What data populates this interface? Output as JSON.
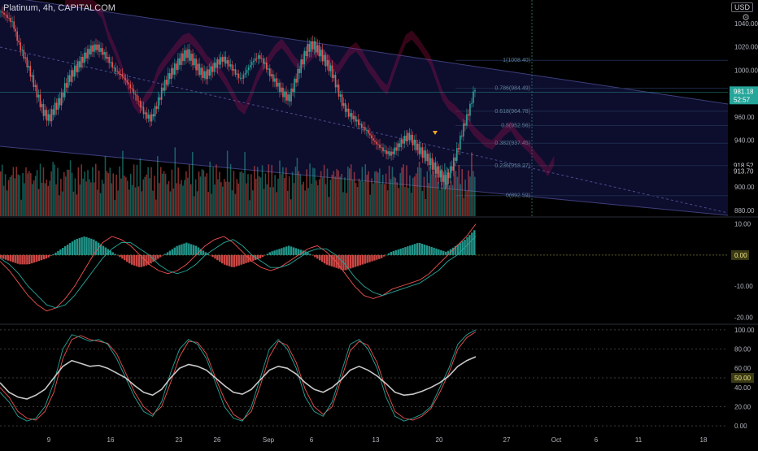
{
  "header": {
    "title": "Platinum, 4h, CAPITALCOM",
    "currency": "USD",
    "settings_icon": "gear-icon"
  },
  "chart_data": [
    {
      "type": "candlestick",
      "name": "Platinum, 4h, CAPITALCOM",
      "ylim": [
        875,
        1060
      ],
      "yticks": [
        880,
        900,
        920,
        940,
        960,
        980,
        1000,
        1020,
        1040
      ],
      "xticks": [
        "9",
        "16",
        "23",
        "26",
        "Sep",
        "6",
        "13",
        "20",
        "27",
        "Oct",
        "6",
        "11",
        "18"
      ],
      "path_close": [
        1050,
        1046,
        1040,
        1022,
        1010,
        996,
        980,
        965,
        958,
        968,
        975,
        990,
        998,
        1005,
        1012,
        1018,
        1020,
        1015,
        1008,
        1000,
        996,
        990,
        982,
        972,
        962,
        958,
        970,
        985,
        995,
        1002,
        1010,
        1015,
        1008,
        1000,
        995,
        1000,
        1006,
        1010,
        1005,
        998,
        992,
        1000,
        1008,
        1012,
        1005,
        995,
        988,
        980,
        975,
        990,
        1005,
        1018,
        1022,
        1016,
        1008,
        1000,
        985,
        970,
        962,
        958,
        952,
        948,
        940,
        935,
        930,
        928,
        934,
        940,
        944,
        936,
        930,
        925,
        918,
        912,
        905,
        915,
        930,
        950,
        965,
        985
      ],
      "current_price": {
        "label": "981.18",
        "countdown": "52:57",
        "value": 981.18
      },
      "price_tags": [
        {
          "label": "918.52",
          "value": 918.52
        },
        {
          "label": "913.70",
          "value": 913.7
        }
      ],
      "fib_levels": [
        {
          "label": "1(1008.40)",
          "value": 1008.4
        },
        {
          "label": "0.786(984.49)",
          "value": 984.49
        },
        {
          "label": "0.618(964.78)",
          "value": 964.78
        },
        {
          "label": "0.5(952.56)",
          "value": 952.56
        },
        {
          "label": "0.382(937.45)",
          "value": 937.45
        },
        {
          "label": "0.236(918.27)",
          "value": 918.27
        },
        {
          "label": "0(892.59)",
          "value": 892.59
        }
      ],
      "colors": {
        "up": "#26a69a",
        "down": "#ef5350",
        "channel_fill": "#0d0d2e",
        "cloud": "#d4145a"
      }
    },
    {
      "type": "histogram",
      "name": "macd",
      "ylim": [
        -22,
        12
      ],
      "yticks": [
        10,
        0,
        -10,
        -20
      ],
      "ytick_labels": [
        "10.00",
        "0.00",
        "-10.00",
        "-20.00"
      ],
      "zero_tag": "0.00",
      "hist": [
        -1,
        -2,
        -3,
        -3,
        -2,
        -1,
        1,
        3,
        5,
        6,
        5,
        3,
        1,
        -1,
        -3,
        -4,
        -3,
        -1,
        1,
        3,
        4,
        3,
        1,
        -1,
        -3,
        -4,
        -3,
        -2,
        -1,
        1,
        2,
        3,
        2,
        1,
        -1,
        -3,
        -4,
        -5,
        -4,
        -3,
        -2,
        -1,
        1,
        2,
        3,
        4,
        3,
        2,
        1,
        3,
        5,
        8
      ],
      "macd_line": [
        -2,
        -5,
        -9,
        -13,
        -16,
        -18,
        -17,
        -14,
        -10,
        -5,
        0,
        4,
        6,
        5,
        3,
        0,
        -3,
        -5,
        -6,
        -5,
        -3,
        0,
        3,
        5,
        6,
        4,
        1,
        -2,
        -4,
        -5,
        -4,
        -2,
        0,
        2,
        3,
        1,
        -2,
        -6,
        -10,
        -13,
        -14,
        -13,
        -11,
        -10,
        -9,
        -8,
        -6,
        -3,
        0,
        3,
        6,
        10
      ],
      "signal_line": [
        -1,
        -3,
        -6,
        -10,
        -13,
        -16,
        -17,
        -16,
        -13,
        -9,
        -5,
        -1,
        2,
        4,
        4,
        2,
        0,
        -3,
        -5,
        -6,
        -5,
        -3,
        0,
        2,
        4,
        5,
        3,
        0,
        -2,
        -4,
        -4,
        -3,
        -1,
        1,
        2,
        2,
        0,
        -3,
        -7,
        -10,
        -12,
        -13,
        -12,
        -11,
        -10,
        -9,
        -7,
        -5,
        -2,
        0,
        3,
        6
      ]
    },
    {
      "type": "line",
      "name": "stoch",
      "ylim": [
        -5,
        105
      ],
      "yticks": [
        100,
        80,
        60,
        40,
        20,
        0
      ],
      "ytick_labels": [
        "100.00",
        "80.00",
        "60.00",
        "40.00",
        "20.00",
        "0.00"
      ],
      "mid_tag": "50.00",
      "k": [
        35,
        25,
        10,
        5,
        8,
        20,
        45,
        80,
        95,
        92,
        88,
        90,
        85,
        70,
        50,
        30,
        15,
        10,
        25,
        55,
        80,
        90,
        85,
        70,
        45,
        20,
        8,
        5,
        20,
        50,
        80,
        90,
        80,
        60,
        30,
        15,
        10,
        25,
        55,
        85,
        90,
        80,
        60,
        30,
        10,
        5,
        8,
        12,
        20,
        40,
        60,
        85,
        95,
        100
      ],
      "d": [
        40,
        30,
        15,
        8,
        6,
        15,
        35,
        70,
        90,
        94,
        90,
        88,
        86,
        75,
        55,
        35,
        20,
        12,
        20,
        45,
        72,
        88,
        87,
        75,
        50,
        28,
        12,
        6,
        15,
        42,
        72,
        88,
        84,
        66,
        38,
        20,
        12,
        20,
        48,
        78,
        88,
        84,
        66,
        38,
        15,
        8,
        6,
        10,
        18,
        35,
        55,
        80,
        92,
        98
      ],
      "rsi": [
        45,
        35,
        30,
        28,
        32,
        38,
        50,
        62,
        68,
        65,
        62,
        63,
        60,
        55,
        50,
        42,
        35,
        32,
        38,
        50,
        60,
        64,
        62,
        58,
        50,
        42,
        35,
        33,
        38,
        48,
        58,
        62,
        60,
        54,
        45,
        38,
        35,
        40,
        48,
        58,
        62,
        58,
        52,
        44,
        35,
        32,
        33,
        36,
        40,
        45,
        52,
        62,
        68,
        72
      ]
    }
  ]
}
